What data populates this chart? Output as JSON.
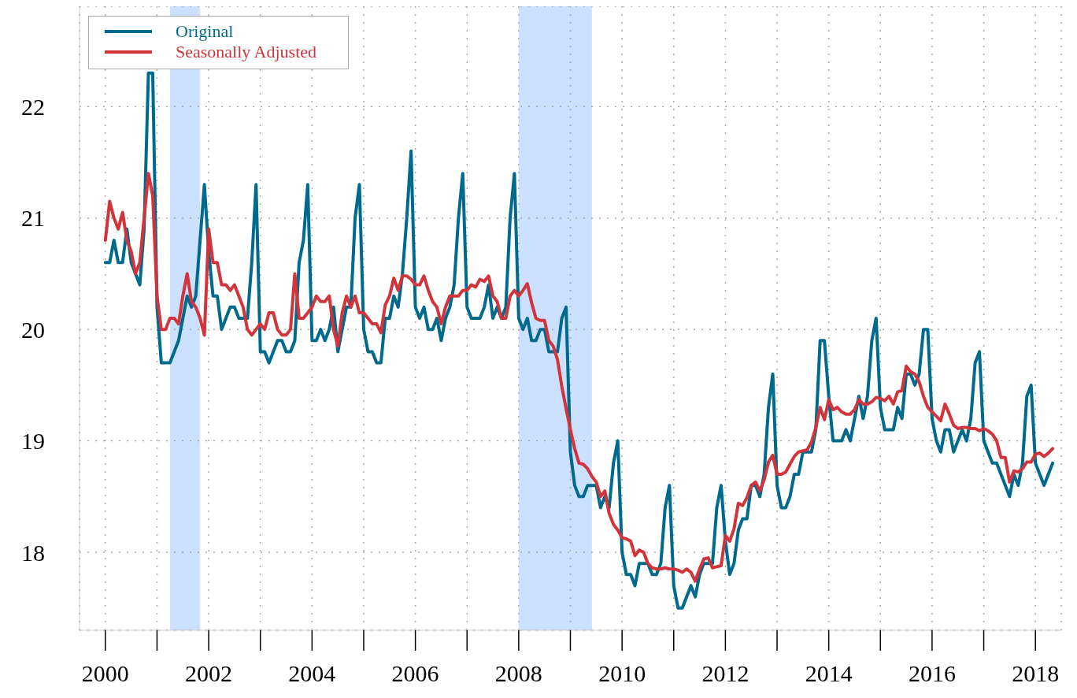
{
  "chart_data": {
    "type": "line",
    "x": [
      "2000-01",
      "2000-02",
      "2000-03",
      "2000-04",
      "2000-05",
      "2000-06",
      "2000-07",
      "2000-08",
      "2000-09",
      "2000-10",
      "2000-11",
      "2000-12",
      "2001-01",
      "2001-02",
      "2001-03",
      "2001-04",
      "2001-05",
      "2001-06",
      "2001-07",
      "2001-08",
      "2001-09",
      "2001-10",
      "2001-11",
      "2001-12",
      "2002-01",
      "2002-02",
      "2002-03",
      "2002-04",
      "2002-05",
      "2002-06",
      "2002-07",
      "2002-08",
      "2002-09",
      "2002-10",
      "2002-11",
      "2002-12",
      "2003-01",
      "2003-02",
      "2003-03",
      "2003-04",
      "2003-05",
      "2003-06",
      "2003-07",
      "2003-08",
      "2003-09",
      "2003-10",
      "2003-11",
      "2003-12",
      "2004-01",
      "2004-02",
      "2004-03",
      "2004-04",
      "2004-05",
      "2004-06",
      "2004-07",
      "2004-08",
      "2004-09",
      "2004-10",
      "2004-11",
      "2004-12",
      "2005-01",
      "2005-02",
      "2005-03",
      "2005-04",
      "2005-05",
      "2005-06",
      "2005-07",
      "2005-08",
      "2005-09",
      "2005-10",
      "2005-11",
      "2005-12",
      "2006-01",
      "2006-02",
      "2006-03",
      "2006-04",
      "2006-05",
      "2006-06",
      "2006-07",
      "2006-08",
      "2006-09",
      "2006-10",
      "2006-11",
      "2006-12",
      "2007-01",
      "2007-02",
      "2007-03",
      "2007-04",
      "2007-05",
      "2007-06",
      "2007-07",
      "2007-08",
      "2007-09",
      "2007-10",
      "2007-11",
      "2007-12",
      "2008-01",
      "2008-02",
      "2008-03",
      "2008-04",
      "2008-05",
      "2008-06",
      "2008-07",
      "2008-08",
      "2008-09",
      "2008-10",
      "2008-11",
      "2008-12",
      "2009-01",
      "2009-02",
      "2009-03",
      "2009-04",
      "2009-05",
      "2009-06",
      "2009-07",
      "2009-08",
      "2009-09",
      "2009-10",
      "2009-11",
      "2009-12",
      "2010-01",
      "2010-02",
      "2010-03",
      "2010-04",
      "2010-05",
      "2010-06",
      "2010-07",
      "2010-08",
      "2010-09",
      "2010-10",
      "2010-11",
      "2010-12",
      "2011-01",
      "2011-02",
      "2011-03",
      "2011-04",
      "2011-05",
      "2011-06",
      "2011-07",
      "2011-08",
      "2011-09",
      "2011-10",
      "2011-11",
      "2011-12",
      "2012-01",
      "2012-02",
      "2012-03",
      "2012-04",
      "2012-05",
      "2012-06",
      "2012-07",
      "2012-08",
      "2012-09",
      "2012-10",
      "2012-11",
      "2012-12",
      "2013-01",
      "2013-02",
      "2013-03",
      "2013-04",
      "2013-05",
      "2013-06",
      "2013-07",
      "2013-08",
      "2013-09",
      "2013-10",
      "2013-11",
      "2013-12",
      "2014-01",
      "2014-02",
      "2014-03",
      "2014-04",
      "2014-05",
      "2014-06",
      "2014-07",
      "2014-08",
      "2014-09",
      "2014-10",
      "2014-11",
      "2014-12",
      "2015-01",
      "2015-02",
      "2015-03",
      "2015-04",
      "2015-05",
      "2015-06",
      "2015-07",
      "2015-08",
      "2015-09",
      "2015-10",
      "2015-11",
      "2015-12",
      "2016-01",
      "2016-02",
      "2016-03",
      "2016-04",
      "2016-05",
      "2016-06",
      "2016-07",
      "2016-08",
      "2016-09",
      "2016-10",
      "2016-11",
      "2016-12",
      "2017-01",
      "2017-02",
      "2017-03",
      "2017-04",
      "2017-05",
      "2017-06",
      "2017-07",
      "2017-08",
      "2017-09",
      "2017-10",
      "2017-11",
      "2017-12",
      "2018-01",
      "2018-02",
      "2018-03",
      "2018-04",
      "2018-05"
    ],
    "series": [
      {
        "name": "Original",
        "color": "#006a8e",
        "values": [
          20.6,
          20.6,
          20.8,
          20.6,
          20.6,
          20.9,
          20.6,
          20.5,
          20.4,
          20.9,
          22.3,
          22.3,
          20.2,
          19.7,
          19.7,
          19.7,
          19.8,
          19.9,
          20.1,
          20.3,
          20.2,
          20.3,
          20.8,
          21.3,
          20.7,
          20.3,
          20.3,
          20.0,
          20.1,
          20.2,
          20.2,
          20.1,
          20.1,
          20.1,
          20.6,
          21.3,
          19.8,
          19.8,
          19.7,
          19.8,
          19.9,
          19.9,
          19.8,
          19.8,
          19.9,
          20.6,
          20.8,
          21.3,
          19.9,
          19.9,
          20.0,
          19.9,
          20.0,
          20.2,
          19.8,
          20.0,
          20.2,
          20.2,
          21.0,
          21.3,
          20.0,
          19.8,
          19.8,
          19.7,
          19.7,
          20.1,
          20.1,
          20.3,
          20.2,
          20.5,
          21.0,
          21.6,
          20.2,
          20.1,
          20.2,
          20.0,
          20.0,
          20.1,
          19.9,
          20.1,
          20.2,
          20.4,
          21.0,
          21.4,
          20.2,
          20.1,
          20.1,
          20.1,
          20.2,
          20.4,
          20.1,
          20.2,
          20.1,
          20.2,
          21.0,
          21.4,
          20.1,
          20.0,
          20.1,
          19.9,
          19.9,
          20.0,
          20.0,
          19.8,
          19.8,
          19.8,
          20.1,
          20.2,
          18.9,
          18.6,
          18.5,
          18.5,
          18.6,
          18.6,
          18.6,
          18.4,
          18.5,
          18.4,
          18.8,
          19.0,
          18.0,
          17.8,
          17.8,
          17.7,
          17.9,
          17.9,
          17.9,
          17.8,
          17.8,
          17.9,
          18.4,
          18.6,
          17.7,
          17.5,
          17.5,
          17.6,
          17.7,
          17.6,
          17.8,
          17.9,
          17.9,
          17.9,
          18.4,
          18.6,
          18.1,
          17.8,
          17.9,
          18.2,
          18.3,
          18.3,
          18.6,
          18.6,
          18.5,
          18.7,
          19.3,
          19.6,
          18.6,
          18.4,
          18.4,
          18.5,
          18.7,
          18.7,
          18.9,
          18.9,
          18.9,
          19.1,
          19.9,
          19.9,
          19.4,
          19.0,
          19.0,
          19.0,
          19.1,
          19.0,
          19.2,
          19.4,
          19.2,
          19.4,
          19.9,
          20.1,
          19.3,
          19.1,
          19.1,
          19.1,
          19.3,
          19.2,
          19.6,
          19.6,
          19.5,
          19.6,
          20.0,
          20.0,
          19.2,
          19.0,
          18.9,
          19.1,
          19.1,
          18.9,
          19.0,
          19.1,
          19.0,
          19.2,
          19.7,
          19.8,
          19.0,
          18.9,
          18.8,
          18.8,
          18.7,
          18.6,
          18.5,
          18.7,
          18.6,
          18.8,
          19.4,
          19.5,
          18.8,
          18.7,
          18.6,
          18.7,
          18.8
        ]
      },
      {
        "name": "Seasonally Adjusted",
        "color": "#d1343a",
        "values": [
          20.8,
          21.15,
          21.0,
          20.9,
          21.05,
          20.8,
          20.7,
          20.5,
          20.6,
          21.0,
          21.4,
          21.2,
          20.3,
          20.0,
          20.0,
          20.1,
          20.1,
          20.05,
          20.3,
          20.5,
          20.25,
          20.2,
          20.1,
          19.95,
          20.9,
          20.6,
          20.6,
          20.4,
          20.4,
          20.35,
          20.4,
          20.3,
          20.2,
          20.0,
          19.95,
          20.0,
          20.05,
          20.0,
          20.15,
          20.15,
          20.0,
          19.95,
          19.95,
          20.0,
          20.5,
          20.1,
          20.1,
          20.15,
          20.2,
          20.3,
          20.25,
          20.25,
          20.3,
          20.0,
          19.85,
          20.15,
          20.3,
          20.2,
          20.3,
          20.15,
          20.15,
          20.1,
          20.05,
          20.05,
          19.97,
          20.22,
          20.3,
          20.46,
          20.35,
          20.48,
          20.48,
          20.45,
          20.4,
          20.4,
          20.48,
          20.35,
          20.25,
          20.2,
          20.05,
          20.2,
          20.3,
          20.3,
          20.3,
          20.35,
          20.35,
          20.4,
          20.38,
          20.45,
          20.43,
          20.48,
          20.3,
          20.25,
          20.1,
          20.1,
          20.3,
          20.35,
          20.3,
          20.35,
          20.41,
          20.24,
          20.1,
          20.08,
          20.08,
          19.9,
          19.85,
          19.73,
          19.49,
          19.29,
          19.1,
          18.93,
          18.8,
          18.79,
          18.75,
          18.68,
          18.63,
          18.5,
          18.55,
          18.35,
          18.25,
          18.2,
          18.13,
          18.12,
          18.1,
          17.97,
          18.02,
          18.0,
          17.9,
          17.86,
          17.85,
          17.85,
          17.86,
          17.85,
          17.85,
          17.84,
          17.82,
          17.85,
          17.82,
          17.74,
          17.85,
          17.94,
          17.95,
          17.86,
          17.87,
          17.88,
          18.15,
          18.1,
          18.21,
          18.44,
          18.42,
          18.49,
          18.6,
          18.63,
          18.55,
          18.65,
          18.81,
          18.87,
          18.7,
          18.7,
          18.72,
          18.79,
          18.86,
          18.9,
          18.91,
          18.92,
          18.99,
          19.12,
          19.3,
          19.19,
          19.37,
          19.28,
          19.3,
          19.26,
          19.24,
          19.24,
          19.28,
          19.37,
          19.33,
          19.33,
          19.35,
          19.39,
          19.38,
          19.36,
          19.4,
          19.33,
          19.44,
          19.45,
          19.67,
          19.62,
          19.6,
          19.53,
          19.4,
          19.3,
          19.26,
          19.22,
          19.18,
          19.33,
          19.24,
          19.14,
          19.11,
          19.12,
          19.12,
          19.11,
          19.11,
          19.09,
          19.11,
          19.09,
          19.06,
          19.0,
          18.85,
          18.85,
          18.63,
          18.73,
          18.72,
          18.75,
          18.81,
          18.81,
          18.88,
          18.89,
          18.86,
          18.89,
          18.93
        ]
      }
    ],
    "xlim": [
      "1999-07",
      "2018-07"
    ],
    "xticks": [
      "2000",
      {
        "value": "2001",
        "label": null
      },
      "2002",
      {
        "value": "2003",
        "label": null
      },
      "2004",
      {
        "value": "2005",
        "label": null
      },
      "2006",
      {
        "value": "2007",
        "label": null
      },
      "2008",
      {
        "value": "2009",
        "label": null
      },
      "2010",
      {
        "value": "2011",
        "label": null
      },
      "2012",
      {
        "value": "2013",
        "label": null
      },
      "2014",
      {
        "value": "2015",
        "label": null
      },
      "2016",
      {
        "value": "2017",
        "label": null
      },
      "2018"
    ],
    "ylim": [
      17.3,
      22.9
    ],
    "yticks": [
      18,
      19,
      20,
      21,
      22
    ],
    "bands": [
      {
        "axis": "x",
        "from": "2001-04",
        "to": "2001-11",
        "color": "#cce0ff"
      },
      {
        "axis": "x",
        "from": "2008-01",
        "to": "2009-06",
        "color": "#cce0ff"
      }
    ],
    "grid": true,
    "legend": "top left",
    "line_style": "solid"
  }
}
